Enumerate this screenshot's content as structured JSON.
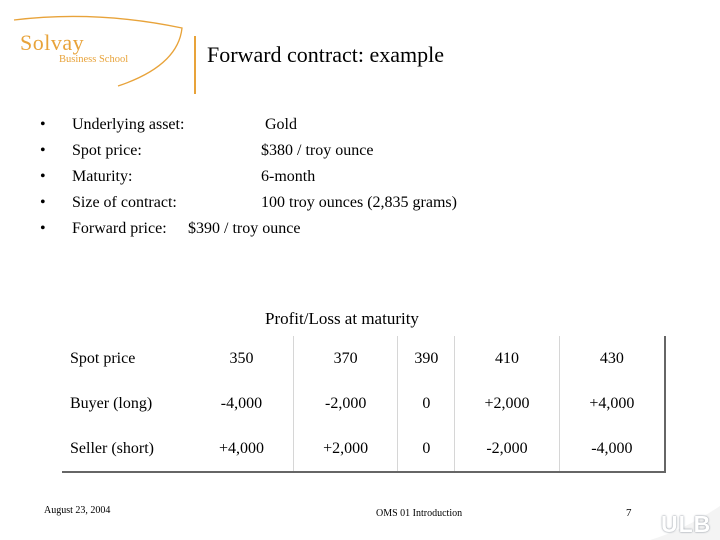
{
  "logo": {
    "main": "Solvay",
    "sub": "Business School"
  },
  "header": {
    "title": "Forward contract: example"
  },
  "bullets": [
    {
      "label": "Underlying asset:",
      "value": "Gold"
    },
    {
      "label": "Spot price:",
      "value": "$380 / troy ounce"
    },
    {
      "label": "Maturity:",
      "value": "6-month"
    },
    {
      "label": "Size of contract:",
      "value": "100 troy ounces (2,835 grams)"
    },
    {
      "label": "Forward price:",
      "value": "$390 / troy ounce"
    }
  ],
  "bullet_glyph": "•",
  "profit_loss": {
    "title": "Profit/Loss at maturity",
    "rows": [
      {
        "label": "Spot price",
        "values": [
          "350",
          "370",
          "390",
          "410",
          "430"
        ]
      },
      {
        "label": "Buyer (long)",
        "values": [
          "-4,000",
          "-2,000",
          "0",
          "+2,000",
          "+4,000"
        ]
      },
      {
        "label": "Seller (short)",
        "values": [
          "+4,000",
          "+2,000",
          "0",
          "-2,000",
          "-4,000"
        ]
      }
    ]
  },
  "footer": {
    "date": "August 23, 2004",
    "center": "OMS 01 Introduction",
    "page": "7",
    "brand": "ULB"
  },
  "colors": {
    "accent": "#e8a33a",
    "table_border": "#666666"
  }
}
